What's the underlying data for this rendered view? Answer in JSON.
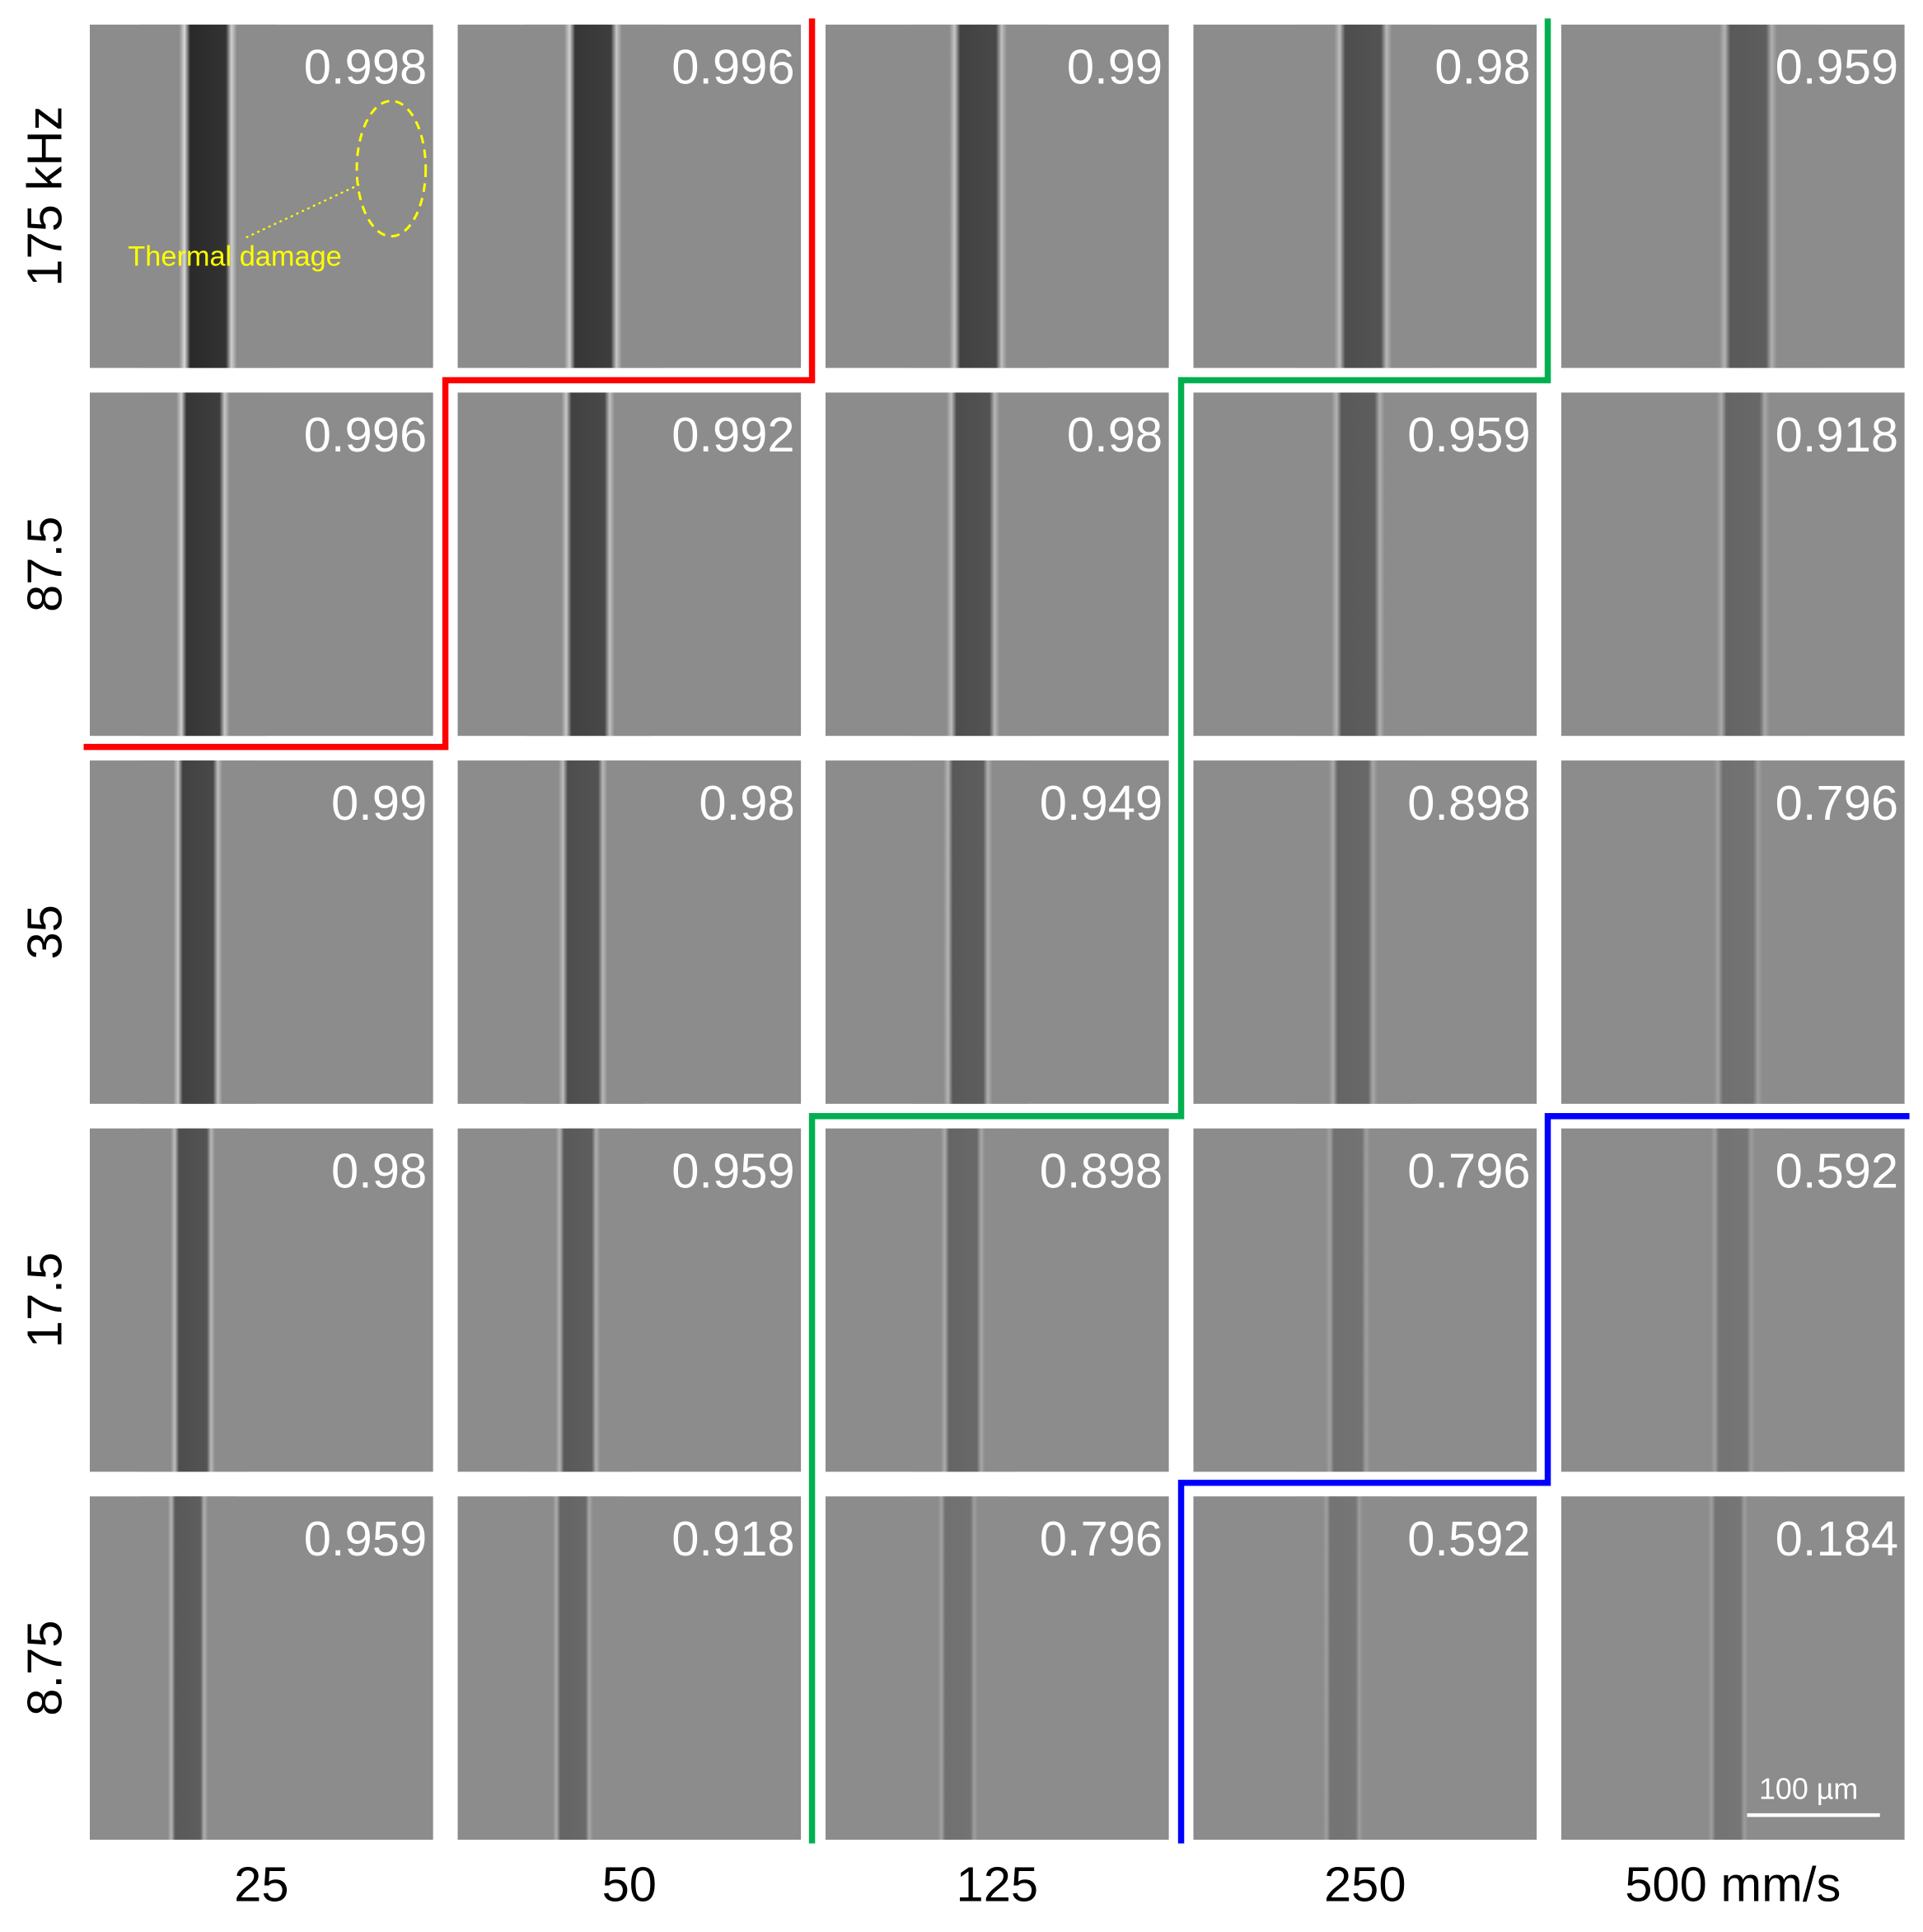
{
  "row_labels": [
    "175 kHz",
    "87.5",
    "35",
    "17.5",
    "8.75"
  ],
  "column_labels": [
    "25",
    "50",
    "125",
    "250",
    "500 mm/s"
  ],
  "panels": [
    [
      "0.998",
      "0.996",
      "0.99",
      "0.98",
      "0.959"
    ],
    [
      "0.996",
      "0.992",
      "0.98",
      "0.959",
      "0.918"
    ],
    [
      "0.99",
      "0.98",
      "0.949",
      "0.898",
      "0.796"
    ],
    [
      "0.98",
      "0.959",
      "0.898",
      "0.796",
      "0.592"
    ],
    [
      "0.959",
      "0.918",
      "0.796",
      "0.592",
      "0.184"
    ]
  ],
  "annotation": "Thermal damage",
  "scale_bar": "100 µm"
}
